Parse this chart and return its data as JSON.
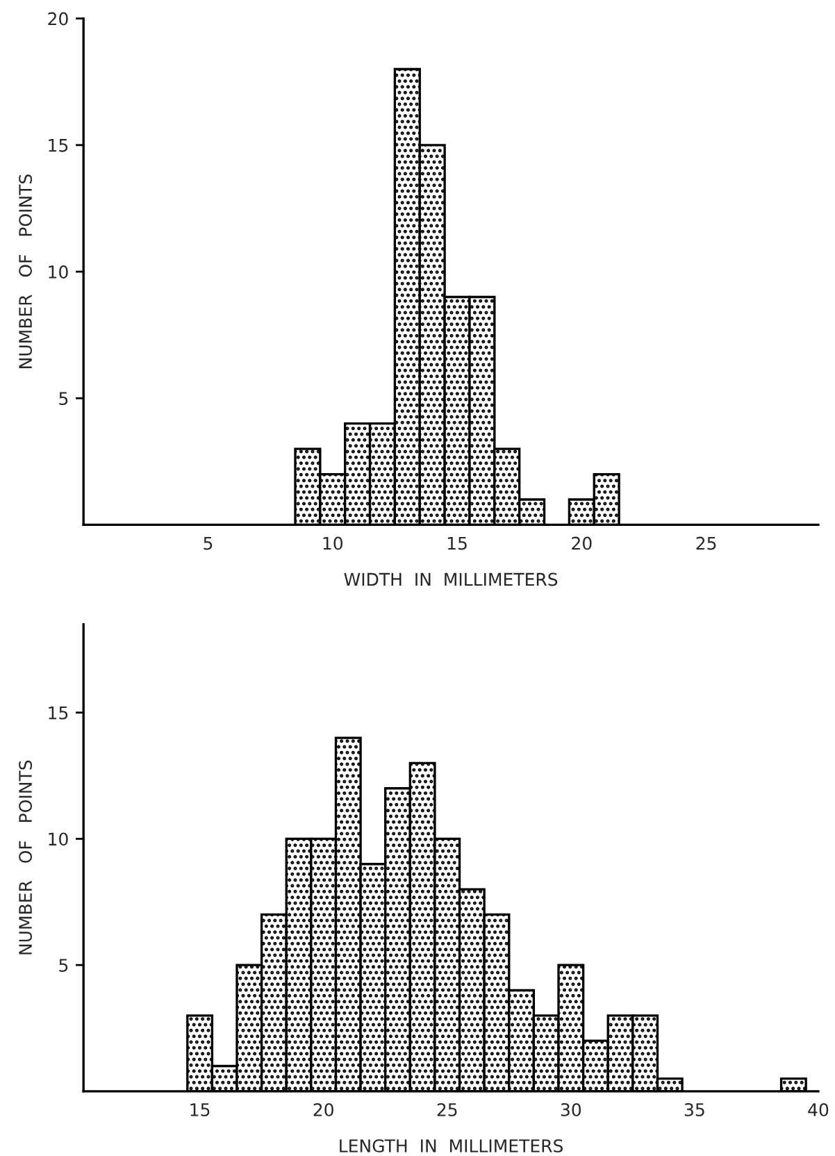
{
  "chart_data": [
    {
      "type": "histogram",
      "xlabel": "WIDTH  IN  MILLIMETERS",
      "ylabel": "NUMBER   OF   POINTS",
      "bins": [
        8.5,
        9.5,
        10.5,
        11.5,
        12.5,
        13.5,
        14.5,
        15.5,
        16.5,
        17.5,
        18.5,
        19.5,
        20.5,
        21.5
      ],
      "values": [
        3,
        2,
        4,
        4,
        18,
        15,
        9,
        9,
        3,
        1,
        0,
        1,
        2
      ],
      "color": "#000000",
      "xlim": [
        0,
        29.5
      ],
      "xticks": [
        5,
        10,
        15,
        20,
        25
      ],
      "ylim": [
        0,
        20
      ],
      "yticks": [
        5,
        10,
        15,
        20
      ],
      "grid": false
    },
    {
      "type": "histogram",
      "xlabel": "LENGTH  IN  MILLIMETERS",
      "ylabel": "NUMBER   OF   POINTS",
      "bins": [
        14.5,
        15.5,
        16.5,
        17.5,
        18.5,
        19.5,
        20.5,
        21.5,
        22.5,
        23.5,
        24.5,
        25.5,
        26.5,
        27.5,
        28.5,
        29.5,
        30.5,
        31.5,
        32.5,
        33.5,
        34.5,
        35.5,
        36.5,
        37.5,
        38.5,
        39.5
      ],
      "values": [
        3,
        1,
        5,
        7,
        10,
        10,
        14,
        9,
        12,
        13,
        10,
        8,
        7,
        4,
        3,
        5,
        2,
        3,
        3,
        0.5,
        0,
        0,
        0,
        0,
        0.5
      ],
      "color": "#000000",
      "xlim": [
        10.3,
        40
      ],
      "xticks": [
        15,
        20,
        25,
        30,
        35,
        40
      ],
      "ylim": [
        0,
        18.5
      ],
      "yticks": [
        5,
        10,
        15
      ],
      "grid": false
    }
  ]
}
